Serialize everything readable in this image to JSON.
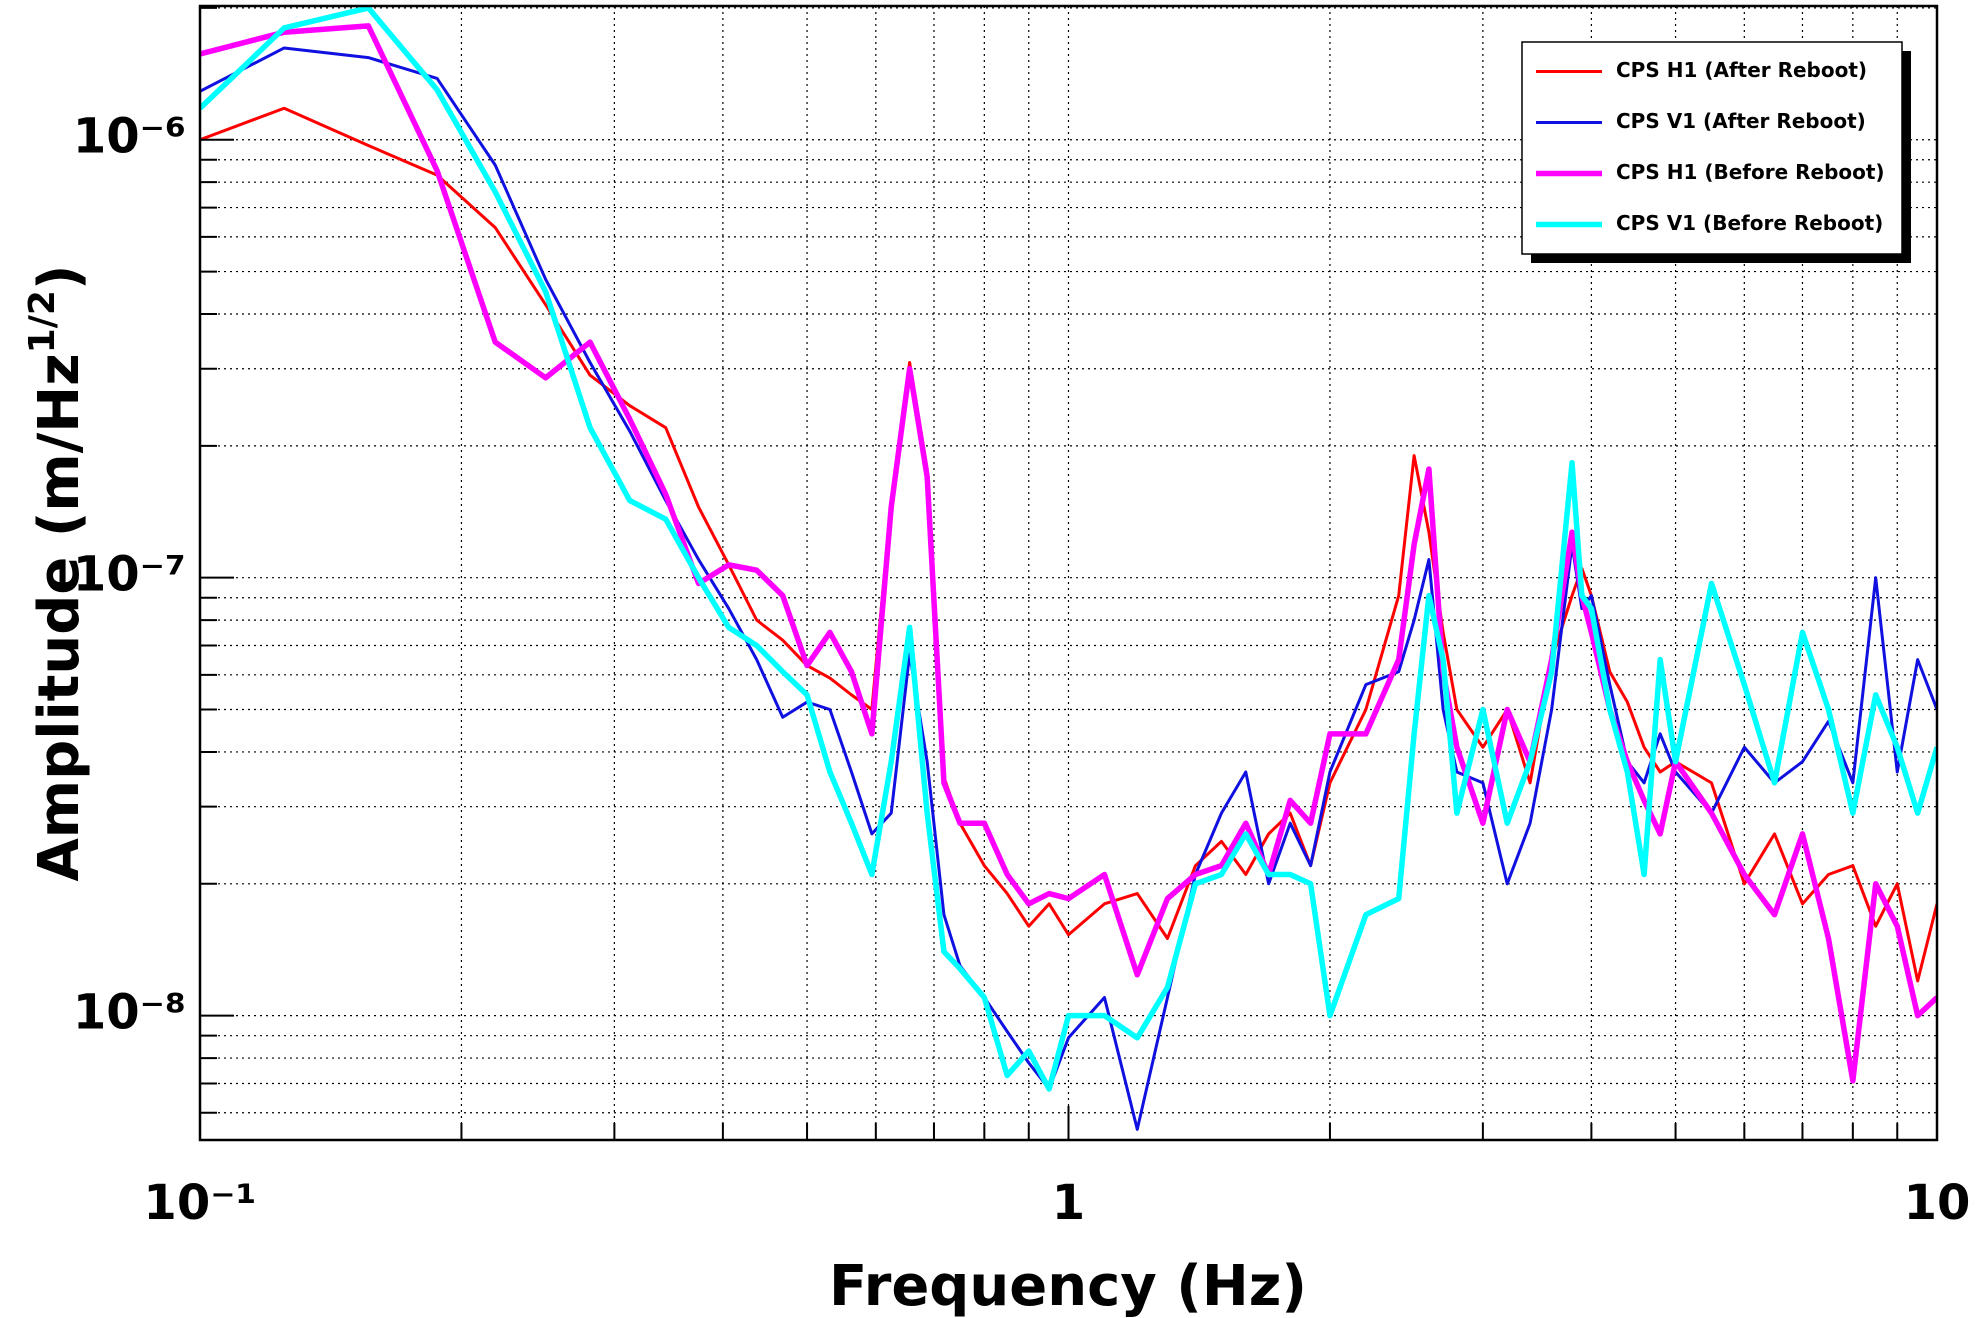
{
  "chart_data": {
    "type": "line",
    "x_label": "Frequency (Hz)",
    "y_label": "Amplitude (m/Hz",
    "y_label_exponent": "1/2",
    "y_label_suffix": ")",
    "log_x": true,
    "log_y": true,
    "grid": true,
    "legend_position": "top-right",
    "xlim": [
      0.1,
      10
    ],
    "ylim": [
      5.2e-09,
      2.02e-06
    ],
    "xticks": [
      {
        "value": 0.1,
        "label": "10⁻¹"
      },
      1,
      10
    ],
    "yticks": [
      {
        "value": 1e-08,
        "label": "10⁻⁸"
      },
      {
        "value": 1e-07,
        "label": "10⁻⁷"
      },
      {
        "value": 1e-06,
        "label": "10⁻⁶"
      }
    ],
    "xticks_minor": [
      0.2,
      0.3,
      0.4,
      0.5,
      0.6,
      0.7,
      0.8,
      0.9,
      2,
      3,
      4,
      5,
      6,
      7,
      8,
      9
    ],
    "yticks_minor": [
      6e-09,
      7e-09,
      8e-09,
      9e-09,
      2e-08,
      3e-08,
      4e-08,
      5e-08,
      6e-08,
      7e-08,
      8e-08,
      9e-08,
      2e-07,
      3e-07,
      4e-07,
      5e-07,
      6e-07,
      7e-07,
      8e-07,
      9e-07,
      2e-06
    ],
    "x": [
      0.1,
      0.125,
      0.15625,
      0.1875,
      0.21875,
      0.25,
      0.28125,
      0.3125,
      0.34375,
      0.375,
      0.40625,
      0.4375,
      0.46875,
      0.5,
      0.53125,
      0.5625,
      0.59375,
      0.625,
      0.65625,
      0.6875,
      0.71875,
      0.75,
      0.8,
      0.85,
      0.9,
      0.95,
      1.0,
      1.1,
      1.2,
      1.3,
      1.4,
      1.5,
      1.6,
      1.7,
      1.8,
      1.9,
      2.0,
      2.2,
      2.4,
      2.5,
      2.6,
      2.7,
      2.8,
      3.0,
      3.2,
      3.4,
      3.6,
      3.8,
      3.9,
      4.0,
      4.2,
      4.4,
      4.6,
      4.8,
      5.0,
      5.5,
      6.0,
      6.5,
      7.0,
      7.5,
      8.0,
      8.5,
      9.0,
      9.5,
      10
    ],
    "series": [
      {
        "name": "CPS H1 (After Reboot)",
        "color": "#ff0000",
        "width": 3,
        "values": [
          1e-06,
          1.18e-06,
          9.7e-07,
          8.3e-07,
          6.3e-07,
          4.2e-07,
          2.9e-07,
          2.47e-07,
          2.2e-07,
          1.45e-07,
          1.07e-07,
          8e-08,
          7.2e-08,
          6.3e-08,
          5.9e-08,
          5.4e-08,
          5e-08,
          1.5e-07,
          3.1e-07,
          1.77e-07,
          3.5e-08,
          2.75e-08,
          2.2e-08,
          1.9e-08,
          1.6e-08,
          1.8e-08,
          1.53e-08,
          1.8e-08,
          1.9e-08,
          1.5e-08,
          2.2e-08,
          2.5e-08,
          2.1e-08,
          2.6e-08,
          2.9e-08,
          2.2e-08,
          3.4e-08,
          5e-08,
          9.1e-08,
          1.9e-07,
          1.27e-07,
          7.5e-08,
          5e-08,
          4.1e-08,
          5e-08,
          3.4e-08,
          6.5e-08,
          9.1e-08,
          1.05e-07,
          9.1e-08,
          6.1e-08,
          5.2e-08,
          4.1e-08,
          3.6e-08,
          3.8e-08,
          3.4e-08,
          2e-08,
          2.6e-08,
          1.8e-08,
          2.1e-08,
          2.2e-08,
          1.6e-08,
          2e-08,
          1.2e-08,
          1.8e-08
        ]
      },
      {
        "name": "CPS V1 (After Reboot)",
        "color": "#1010e0",
        "width": 3,
        "values": [
          1.29e-06,
          1.62e-06,
          1.54e-06,
          1.38e-06,
          8.75e-07,
          4.8e-07,
          3.1e-07,
          2.16e-07,
          1.5e-07,
          1.1e-07,
          8.5e-08,
          6.5e-08,
          4.8e-08,
          5.2e-08,
          5e-08,
          3.6e-08,
          2.6e-08,
          2.9e-08,
          6.7e-08,
          3.8e-08,
          1.7e-08,
          1.3e-08,
          1.1e-08,
          9.2e-09,
          7.8e-09,
          6.8e-09,
          8.9e-09,
          1.1e-08,
          5.5e-09,
          1.1e-08,
          2.1e-08,
          2.9e-08,
          3.6e-08,
          2e-08,
          2.75e-08,
          2.2e-08,
          3.6e-08,
          5.7e-08,
          6.1e-08,
          8e-08,
          1.1e-07,
          5e-08,
          3.6e-08,
          3.4e-08,
          2e-08,
          2.75e-08,
          5e-08,
          1.19e-07,
          8.5e-08,
          9.1e-08,
          5.7e-08,
          3.8e-08,
          3.4e-08,
          4.4e-08,
          3.6e-08,
          2.9e-08,
          4.1e-08,
          3.4e-08,
          3.8e-08,
          4.7e-08,
          3.4e-08,
          1e-07,
          3.6e-08,
          6.5e-08,
          5e-08
        ]
      },
      {
        "name": "CPS H1 (Before Reboot)",
        "color": "#ff00ff",
        "width": 5.5,
        "values": [
          1.57e-06,
          1.76e-06,
          1.82e-06,
          8.5e-07,
          3.45e-07,
          2.86e-07,
          3.45e-07,
          2.3e-07,
          1.55e-07,
          9.7e-08,
          1.07e-07,
          1.04e-07,
          9.1e-08,
          6.3e-08,
          7.5e-08,
          6.1e-08,
          4.4e-08,
          1.45e-07,
          3e-07,
          1.7e-07,
          3.4e-08,
          2.75e-08,
          2.75e-08,
          2.1e-08,
          1.8e-08,
          1.9e-08,
          1.85e-08,
          2.1e-08,
          1.24e-08,
          1.85e-08,
          2.1e-08,
          2.2e-08,
          2.75e-08,
          2.1e-08,
          3.1e-08,
          2.75e-08,
          4.4e-08,
          4.4e-08,
          6.5e-08,
          1.19e-07,
          1.77e-07,
          6.1e-08,
          4.1e-08,
          2.75e-08,
          5e-08,
          3.8e-08,
          6.5e-08,
          1.27e-07,
          9.1e-08,
          7.5e-08,
          5e-08,
          3.8e-08,
          3.1e-08,
          2.6e-08,
          3.8e-08,
          2.9e-08,
          2.1e-08,
          1.7e-08,
          2.6e-08,
          1.5e-08,
          7.1e-09,
          2e-08,
          1.6e-08,
          1e-08,
          1.1e-08
        ]
      },
      {
        "name": "CPS V1 (Before Reboot)",
        "color": "#00ffff",
        "width": 5.5,
        "values": [
          1.18e-06,
          1.8e-06,
          2e-06,
          1.3e-06,
          7.6e-07,
          4.5e-07,
          2.2e-07,
          1.5e-07,
          1.36e-07,
          1e-07,
          7.7e-08,
          7e-08,
          6.1e-08,
          5.4e-08,
          3.6e-08,
          2.75e-08,
          2.1e-08,
          3.8e-08,
          7.7e-08,
          2.9e-08,
          1.4e-08,
          1.28e-08,
          1.1e-08,
          7.3e-09,
          8.3e-09,
          6.8e-09,
          1e-08,
          1e-08,
          8.9e-09,
          1.16e-08,
          2e-08,
          2.1e-08,
          2.6e-08,
          2.1e-08,
          2.1e-08,
          2e-08,
          1e-08,
          1.7e-08,
          1.85e-08,
          4.4e-08,
          9.1e-08,
          6.5e-08,
          2.9e-08,
          5e-08,
          2.75e-08,
          3.8e-08,
          6.1e-08,
          1.83e-07,
          9.1e-08,
          8.5e-08,
          5e-08,
          3.6e-08,
          2.1e-08,
          6.5e-08,
          3.8e-08,
          9.7e-08,
          5.7e-08,
          3.4e-08,
          7.5e-08,
          5e-08,
          2.9e-08,
          5.4e-08,
          4.1e-08,
          2.9e-08,
          4.1e-08
        ]
      }
    ]
  }
}
